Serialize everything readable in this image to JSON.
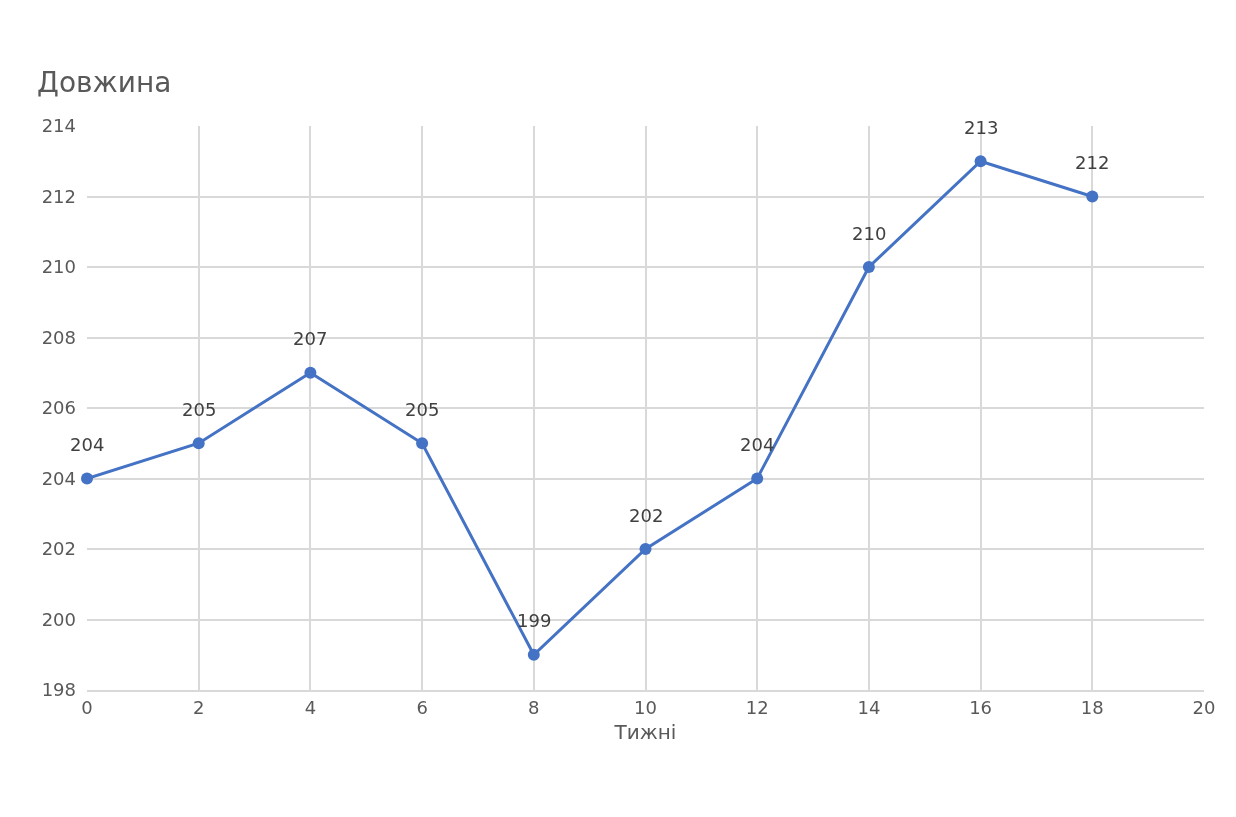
{
  "chart_data": {
    "type": "line",
    "title": "Довжина",
    "xlabel": "Тижні",
    "x": [
      0,
      2,
      4,
      6,
      8,
      10,
      12,
      14,
      16,
      18
    ],
    "series": [
      {
        "color": "#4472c4",
        "values": [
          204,
          205,
          207,
          205,
          199,
          202,
          204,
          210,
          213,
          212
        ]
      }
    ],
    "xlim": [
      0,
      20
    ],
    "xticks": [
      0,
      2,
      4,
      6,
      8,
      10,
      12,
      14,
      16,
      18,
      20
    ],
    "ylim": [
      198,
      214
    ],
    "yticks": [
      198,
      200,
      202,
      204,
      206,
      208,
      210,
      212,
      214
    ],
    "grid": true,
    "marker": "circle",
    "line_style": "solid",
    "data_labels": true
  }
}
